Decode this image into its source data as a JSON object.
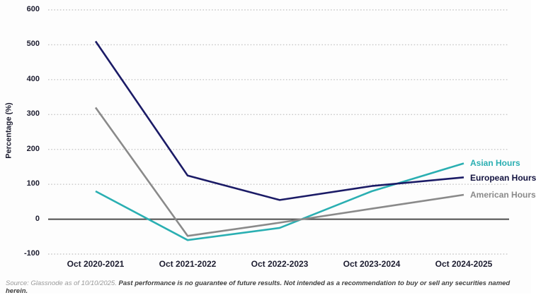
{
  "chart_data": {
    "type": "line",
    "categories": [
      "Oct 2020-2021",
      "Oct 2021-2022",
      "Oct 2022-2023",
      "Oct 2023-2024",
      "Oct 2024-2025"
    ],
    "series": [
      {
        "name": "Asian Hours",
        "values": [
          80,
          -60,
          -25,
          80,
          160
        ],
        "color": "#2aafb2"
      },
      {
        "name": "European Hours",
        "values": [
          510,
          125,
          55,
          95,
          120
        ],
        "color": "#1b1b66"
      },
      {
        "name": "American Hours",
        "values": [
          320,
          -48,
          -10,
          30,
          70
        ],
        "color": "#8a8a8a"
      }
    ],
    "ylabel": "Percentage (%)",
    "xlabel": "",
    "title": "",
    "ylim": [
      -100,
      600
    ],
    "yticks": [
      600,
      500,
      400,
      300,
      200,
      100,
      0,
      -100
    ],
    "grid": "dotted horizontal",
    "zero_line": true,
    "legend_position": "right-of-line-ends"
  },
  "axes": {
    "y_title": "Percentage (%)"
  },
  "legend": {
    "asian": "Asian Hours",
    "european": "European Hours",
    "american": "American Hours"
  },
  "colors": {
    "asian": "#2aafb2",
    "european": "#1b1b66",
    "american": "#8a8a8a",
    "gridline": "#c9c9c9",
    "zero_line": "#4d4d4d",
    "tick_text": "#1d1d30"
  },
  "source": {
    "prefix": "Source: Glassnode as of 10/10/2025. ",
    "disclaimer": "Past performance is no guarantee of future results. Not intended as a recommendation to buy or sell any securities named herein."
  }
}
